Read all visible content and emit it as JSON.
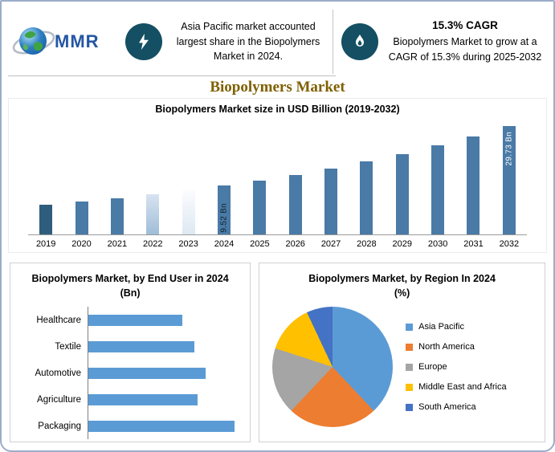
{
  "colors": {
    "accent_teal": "#144f63",
    "bar_blue": "#4a7aa6",
    "bar_blue_dark": "#2f5d7d",
    "hbar_blue": "#5b9bd5",
    "title_gold": "#7f6000",
    "border_blue": "#9badc9",
    "logo_blue": "#2456a4"
  },
  "header": {
    "logo": {
      "text": "MMR"
    },
    "highlight_left": {
      "icon": "lightning-icon",
      "text": "Asia Pacific market accounted largest share in the Biopolymers Market in 2024."
    },
    "highlight_right": {
      "icon": "flame-icon",
      "title": "15.3% CAGR",
      "text": "Biopolymers Market to grow at a CAGR of 15.3% during 2025-2032"
    },
    "page_title": "Biopolymers Market"
  },
  "chart_data": [
    {
      "type": "bar",
      "title": "Biopolymers Market size in USD Billion (2019-2032)",
      "categories": [
        "2019",
        "2020",
        "2021",
        "2022",
        "2023",
        "2024",
        "2025",
        "2026",
        "2027",
        "2028",
        "2029",
        "2030",
        "2031",
        "2032"
      ],
      "values": [
        4.67,
        5.39,
        6.21,
        7.16,
        8.26,
        9.52,
        10.98,
        12.66,
        14.59,
        16.83,
        19.4,
        22.37,
        25.79,
        29.73
      ],
      "unit": "USD Bn",
      "ylim": [
        0,
        29.73
      ],
      "grid": false,
      "bar_styles": [
        "dark",
        "solid",
        "solid",
        "fade",
        "pale",
        "solid",
        "solid",
        "solid",
        "solid",
        "solid",
        "solid",
        "solid",
        "solid",
        "solid"
      ],
      "annotations": [
        {
          "category": "2024",
          "text": "9.52 Bn",
          "theme": "dark"
        },
        {
          "category": "2032",
          "text": "29.73 Bn",
          "theme": "light"
        }
      ]
    },
    {
      "type": "bar",
      "orientation": "horizontal",
      "title": "Biopolymers Market, by End User in 2024 (Bn)",
      "categories": [
        "Healthcare",
        "Textile",
        "Automotive",
        "Agriculture",
        "Packaging"
      ],
      "values": [
        1.56,
        1.77,
        1.95,
        1.82,
        2.42
      ],
      "unit": "USD Bn",
      "grid": false
    },
    {
      "type": "pie",
      "title": "Biopolymers Market, by Region In 2024 (%)",
      "labels": [
        "Asia Pacific",
        "North America",
        "Europe",
        "Middle East and Africa",
        "South America"
      ],
      "values": [
        38,
        24,
        18,
        13,
        7
      ],
      "colors": [
        "#5b9bd5",
        "#ed7d31",
        "#a5a5a5",
        "#ffc000",
        "#4472c4"
      ],
      "legend_position": "right"
    }
  ]
}
